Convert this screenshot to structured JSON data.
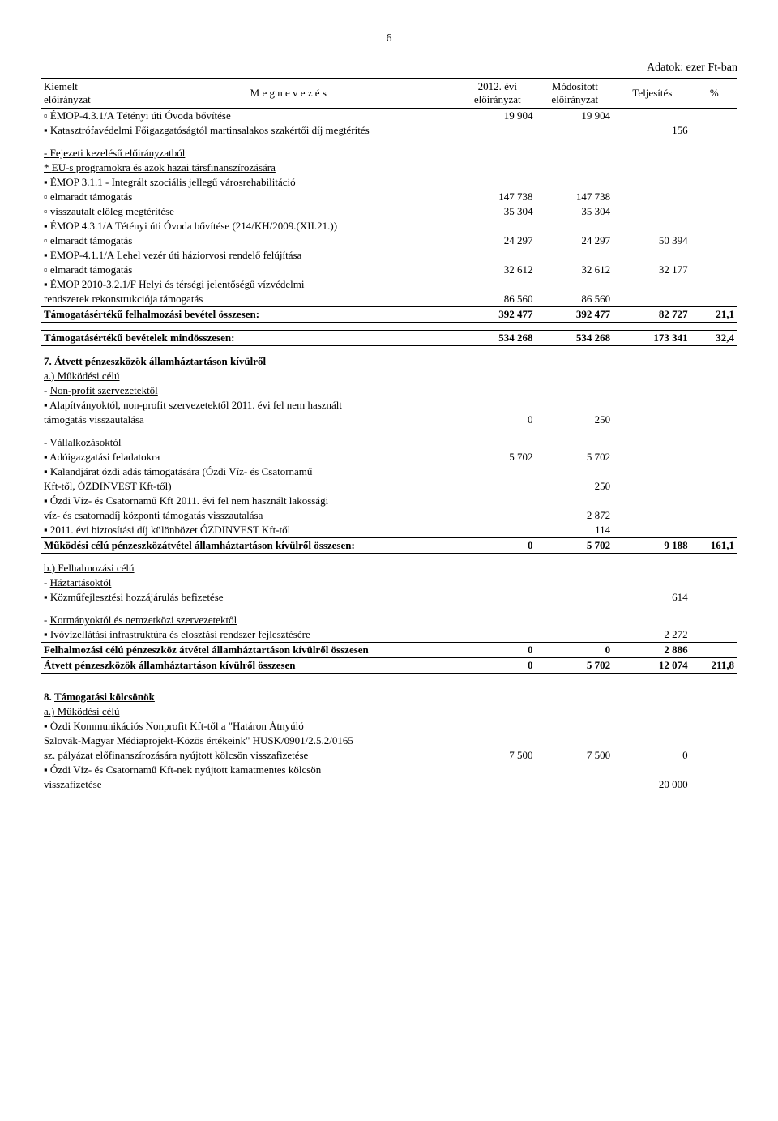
{
  "page_number": "6",
  "top_right": "Adatok: ezer Ft-ban",
  "header": {
    "c1a": "Kiemelt",
    "c1b": "előirányzat",
    "c2": "M e g n e v e z é s",
    "c3a": "2012. évi",
    "c3b": "előirányzat",
    "c4a": "Módosított",
    "c4b": "előirányzat",
    "c5": "Teljesítés",
    "c6": "%"
  },
  "rows": [
    {
      "label": "ÉMOP-4.3.1/A Tétényi úti Óvoda bővítése",
      "v1": "19 904",
      "v2": "19 904",
      "cls": "indent3 bullet"
    },
    {
      "label": "Katasztrófavédelmi Főigazgatóságtól martinsalakos szakértői díj megtérítés",
      "v3": "156",
      "cls": "indent2 square"
    },
    {
      "spacer": true
    },
    {
      "label": "Fejezeti kezelésű előirányzatból",
      "cls": "indent1 dash underline"
    },
    {
      "label": "EU-s programokra és azok hazai társfinanszírozására",
      "cls": "indent1 star underline"
    },
    {
      "label": "ÉMOP 3.1.1 - Integrált szociális jellegű városrehabilitáció",
      "cls": "indent2 square"
    },
    {
      "label": "elmaradt támogatás",
      "v1": "147 738",
      "v2": "147 738",
      "cls": "indent3 bullet"
    },
    {
      "label": "visszautalt előleg megtérítése",
      "v1": "35 304",
      "v2": "35 304",
      "cls": "indent3 bullet"
    },
    {
      "label": "ÉMOP 4.3.1/A Tétényi úti Óvoda bővítése (214/KH/2009.(XII.21.))",
      "cls": "indent2 square"
    },
    {
      "label": "elmaradt támogatás",
      "v1": "24 297",
      "v2": "24 297",
      "v3": "50 394",
      "cls": "indent3 bullet"
    },
    {
      "label": "ÉMOP-4.1.1/A Lehel vezér úti háziorvosi rendelő felújítása",
      "cls": "indent2 square"
    },
    {
      "label": "elmaradt támogatás",
      "v1": "32 612",
      "v2": "32 612",
      "v3": "32 177",
      "cls": "indent3 bullet"
    },
    {
      "label": "ÉMOP 2010-3.2.1/F Helyi és térségi jelentőségű vízvédelmi",
      "cls": "indent2 square"
    },
    {
      "label": "rendszerek rekonstrukciója támogatás",
      "v1": "86 560",
      "v2": "86 560",
      "cls": "indent3"
    },
    {
      "label": "Támogatásértékű felhalmozási bevétel összesen:",
      "v1": "392 477",
      "v2": "392 477",
      "v3": "82 727",
      "v4": "21,1",
      "cls": "bold",
      "sum": true
    },
    {
      "spacer": true
    },
    {
      "label": "Támogatásértékű bevételek mindösszesen:",
      "v1": "534 268",
      "v2": "534 268",
      "v3": "173 341",
      "v4": "32,4",
      "cls": "bold",
      "sum": true
    },
    {
      "spacer": true
    }
  ],
  "section7": {
    "num": "7.",
    "title": "Átvett pénzeszközök államháztartáson kívülről",
    "a": "a.) Működési célú",
    "np": "Non-profit szervezetektől",
    "np_item": "Alapítványoktól, non-profit szervezetektől 2011. évi fel nem használt",
    "np_item2": "támogatás visszautalása",
    "np_v1": "0",
    "np_v2": "250",
    "vall": "Vállalkozásoktól",
    "vall_items": [
      {
        "label": "Adóigazgatási feladatokra",
        "v1": "5 702",
        "v2": "5 702"
      },
      {
        "label": "Kalandjárat ózdi adás támogatására (Ózdi Víz- és Csatornamű",
        "label2": "Kft-től, ÓZDINVEST Kft-től)",
        "v2": "250"
      },
      {
        "label": "Ózdi Víz- és Csatornamű Kft 2011. évi fel nem használt lakossági",
        "label2": "víz- és csatornadíj központi támogatás visszautalása",
        "v2": "2 872"
      },
      {
        "label": "2011. évi biztosítási díj különbözet ÓZDINVEST Kft-től",
        "v2": "114"
      }
    ],
    "mukodesi_sum": {
      "label": "Működési célú pénzeszközátvétel államháztartáson kívülről összesen:",
      "v1": "0",
      "v2": "5 702",
      "v3": "9 188",
      "v4": "161,1"
    },
    "b": "b.) Felhalmozási célú",
    "hazt": "Háztartásoktól",
    "hazt_item": {
      "label": "Közműfejlesztési hozzájárulás befizetése",
      "v3": "614"
    },
    "korm": "Kormányoktól és nemzetközi szervezetektől",
    "korm_item": {
      "label": "Ivóvízellátási infrastruktúra és elosztási rendszer fejlesztésére",
      "v3": "2 272"
    },
    "felh_sum": {
      "label": "Felhalmozási célú pénzeszköz átvétel államháztartáson kívülről összesen",
      "v1": "0",
      "v2": "0",
      "v3": "2 886"
    },
    "total": {
      "label": "Átvett pénzeszközök államháztartáson kívülről összesen",
      "v1": "0",
      "v2": "5 702",
      "v3": "12 074",
      "v4": "211,8"
    }
  },
  "section8": {
    "num": "8.",
    "title": "Támogatási kölcsönök",
    "a": "a.) Működési célú",
    "items": [
      {
        "label": "Ózdi Kommunikációs Nonprofit Kft-től a \"Határon Átnyúló",
        "label2": "Szlovák-Magyar Médiaprojekt-Közös értékeink\" HUSK/0901/2.5.2/0165",
        "label3": "sz. pályázat előfinanszírozására nyújtott kölcsön visszafizetése",
        "v1": "7 500",
        "v2": "7 500",
        "v3": "0"
      },
      {
        "label": "Ózdi Víz- és Csatornamű Kft-nek nyújtott kamatmentes kölcsön",
        "label2": "visszafizetése",
        "v3": "20 000"
      }
    ]
  },
  "colwidths": {
    "label": "54%",
    "n": "10%",
    "n2": "10%",
    "n3": "10%",
    "n4": "6%"
  }
}
